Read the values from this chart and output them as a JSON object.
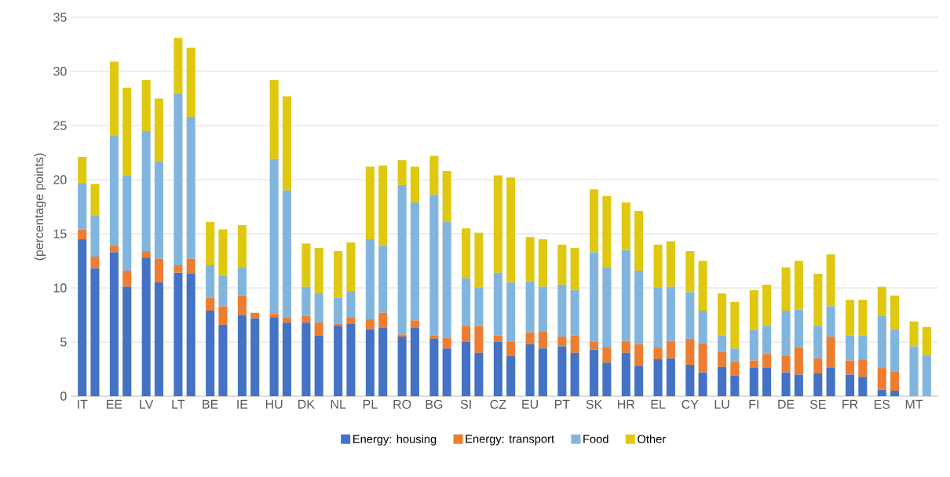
{
  "chart_data": {
    "type": "bar",
    "stacked": true,
    "ylabel": "(percentage points)",
    "categories": [
      "IT",
      null,
      "EE",
      null,
      "LV",
      null,
      "LT",
      null,
      "BE",
      null,
      "IE",
      null,
      "HU",
      null,
      "DK",
      null,
      "NL",
      null,
      "PL",
      null,
      "RO",
      null,
      "BG",
      null,
      "SI",
      null,
      "CZ",
      null,
      "EU",
      null,
      "PT",
      null,
      "SK",
      null,
      "HR",
      null,
      "EL",
      null,
      "CY",
      null,
      "LU",
      null,
      "FI",
      null,
      "DE",
      null,
      "SE",
      null,
      "FR",
      null,
      "ES",
      null,
      "MT",
      null
    ],
    "series": [
      {
        "name": "Energy: housing",
        "color": "#4472c4",
        "values": [
          14.5,
          11.8,
          13.3,
          10.1,
          12.8,
          10.5,
          11.4,
          11.3,
          7.9,
          6.6,
          7.5,
          7.2,
          7.3,
          6.8,
          6.8,
          5.6,
          6.5,
          6.7,
          6.2,
          6.3,
          5.5,
          6.3,
          5.3,
          4.4,
          5.0,
          4.0,
          5.0,
          3.7,
          4.8,
          4.4,
          4.6,
          4.0,
          4.3,
          3.1,
          4.0,
          2.8,
          3.4,
          3.5,
          2.9,
          2.2,
          2.7,
          1.9,
          2.6,
          2.6,
          2.2,
          2.0,
          2.1,
          2.6,
          2.0,
          1.8,
          0.6,
          0.5,
          0,
          0
        ]
      },
      {
        "name": "Energy: transport",
        "color": "#ed7d31",
        "values": [
          0.9,
          1.1,
          0.6,
          1.5,
          0.6,
          2.2,
          0.7,
          1.4,
          1.2,
          1.7,
          1.8,
          0.5,
          0.3,
          0.5,
          0.6,
          1.2,
          0.2,
          0.6,
          0.9,
          1.4,
          0.2,
          0.7,
          0.3,
          1.0,
          1.5,
          2.5,
          0.6,
          1.3,
          1.1,
          1.6,
          0.9,
          1.6,
          0.7,
          1.4,
          1.1,
          2.0,
          1.1,
          1.6,
          2.4,
          2.7,
          1.4,
          1.3,
          0.7,
          1.3,
          1.5,
          2.5,
          1.4,
          2.9,
          1.3,
          1.6,
          2.0,
          1.8,
          0,
          0
        ]
      },
      {
        "name": "Food",
        "color": "#82b5de",
        "values": [
          4.3,
          3.8,
          10.2,
          8.8,
          11.1,
          9.0,
          15.8,
          13.1,
          3.0,
          2.8,
          2.6,
          0,
          14.3,
          11.7,
          2.7,
          2.7,
          2.4,
          2.4,
          7.4,
          6.2,
          13.8,
          10.9,
          13.0,
          10.7,
          4.4,
          3.5,
          5.8,
          5.5,
          4.7,
          4.1,
          4.8,
          4.2,
          8.3,
          7.4,
          8.4,
          6.8,
          5.5,
          5.0,
          4.3,
          3.0,
          1.5,
          1.2,
          2.8,
          2.6,
          4.2,
          3.5,
          3.0,
          2.8,
          2.3,
          2.2,
          4.8,
          3.9,
          4.6,
          3.8
        ]
      },
      {
        "name": "Other",
        "color": "#dfc80f",
        "values": [
          2.4,
          2.9,
          6.8,
          8.1,
          4.7,
          5.8,
          5.2,
          6.4,
          4.0,
          4.3,
          3.9,
          0,
          7.3,
          8.7,
          4.0,
          4.2,
          4.3,
          4.5,
          6.7,
          7.4,
          2.3,
          3.3,
          3.6,
          4.7,
          4.6,
          5.1,
          9.0,
          9.7,
          4.1,
          4.4,
          3.7,
          3.9,
          5.8,
          6.6,
          4.4,
          5.5,
          4.0,
          4.2,
          3.8,
          4.6,
          3.9,
          4.3,
          3.7,
          3.8,
          4.0,
          4.5,
          4.8,
          4.8,
          3.3,
          3.3,
          2.7,
          3.1,
          2.3,
          2.6
        ]
      }
    ],
    "ylim": [
      0,
      35
    ],
    "yticks": [
      0,
      5,
      10,
      15,
      20,
      25,
      30,
      35
    ],
    "grid": "y",
    "legend": "bottom"
  }
}
